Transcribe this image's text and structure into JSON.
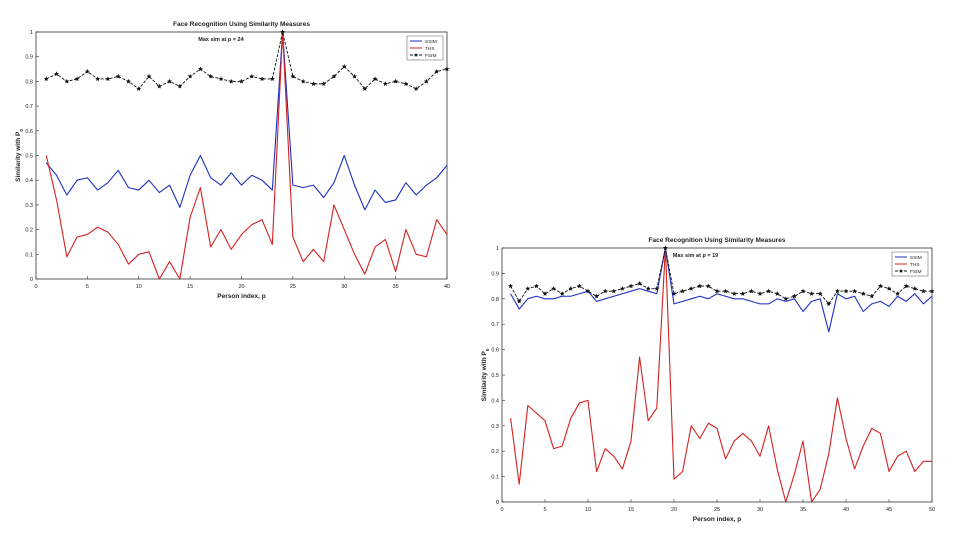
{
  "chart_data": [
    {
      "type": "line",
      "title": "Face Recognition Using Similarity Measures",
      "annotation": "Max sim at p = 24",
      "xlabel": "Person index, p",
      "ylabel": "Similarity with P",
      "ylabel_sub": "0",
      "xlim": [
        0,
        40
      ],
      "ylim": [
        0,
        1
      ],
      "xticks": [
        0,
        5,
        10,
        15,
        20,
        25,
        30,
        35,
        40
      ],
      "xtick_labels": [
        "0",
        "5",
        "10",
        "15",
        "20",
        "25",
        "30",
        "35",
        "40"
      ],
      "yticks": [
        0,
        0.1,
        0.2,
        0.3,
        0.4,
        0.5,
        0.6,
        0.7,
        0.8,
        0.9,
        1
      ],
      "ytick_labels": [
        "0",
        "0.1",
        "0.2",
        "0.3",
        "0.4",
        "0.5",
        "0.6",
        "0.7",
        "0.8",
        "0.9",
        "1"
      ],
      "legend_position": "top-right",
      "grid": false,
      "x": [
        1,
        2,
        3,
        4,
        5,
        6,
        7,
        8,
        9,
        10,
        11,
        12,
        13,
        14,
        15,
        16,
        17,
        18,
        19,
        20,
        21,
        22,
        23,
        24,
        25,
        26,
        27,
        28,
        29,
        30,
        31,
        32,
        33,
        34,
        35,
        36,
        37,
        38,
        39,
        40
      ],
      "series": [
        {
          "name": "SSIM",
          "color": "#1f2fbf",
          "marker": "none",
          "dash": "solid",
          "values": [
            0.47,
            0.42,
            0.34,
            0.4,
            0.41,
            0.36,
            0.39,
            0.44,
            0.37,
            0.36,
            0.4,
            0.35,
            0.38,
            0.29,
            0.42,
            0.5,
            0.41,
            0.38,
            0.43,
            0.38,
            0.42,
            0.4,
            0.36,
            1.0,
            0.38,
            0.37,
            0.38,
            0.33,
            0.39,
            0.5,
            0.38,
            0.28,
            0.36,
            0.31,
            0.32,
            0.39,
            0.34,
            0.38,
            0.41,
            0.46
          ]
        },
        {
          "name": "THS",
          "color": "#d42020",
          "marker": "none",
          "dash": "solid",
          "values": [
            0.5,
            0.32,
            0.09,
            0.17,
            0.18,
            0.21,
            0.19,
            0.14,
            0.06,
            0.1,
            0.11,
            0.0,
            0.07,
            0.0,
            0.25,
            0.37,
            0.13,
            0.2,
            0.12,
            0.18,
            0.22,
            0.24,
            0.14,
            1.0,
            0.17,
            0.07,
            0.12,
            0.07,
            0.3,
            0.2,
            0.1,
            0.02,
            0.13,
            0.16,
            0.03,
            0.2,
            0.1,
            0.09,
            0.24,
            0.18
          ]
        },
        {
          "name": "FSIM",
          "color": "#111111",
          "marker": "star",
          "dash": "dashed",
          "values": [
            0.81,
            0.83,
            0.8,
            0.81,
            0.84,
            0.81,
            0.81,
            0.82,
            0.8,
            0.77,
            0.82,
            0.78,
            0.8,
            0.78,
            0.82,
            0.85,
            0.82,
            0.81,
            0.8,
            0.8,
            0.82,
            0.81,
            0.81,
            1.0,
            0.82,
            0.8,
            0.79,
            0.79,
            0.82,
            0.86,
            0.82,
            0.77,
            0.81,
            0.79,
            0.8,
            0.79,
            0.77,
            0.8,
            0.84,
            0.85
          ]
        }
      ]
    },
    {
      "type": "line",
      "title": "Face Recognition Using Similarity Measures",
      "annotation": "Max sim at p = 19",
      "xlabel": "Person index, p",
      "ylabel": "Similarity with P",
      "ylabel_sub": "0",
      "xlim": [
        0,
        50
      ],
      "ylim": [
        0,
        1
      ],
      "xticks": [
        0,
        5,
        10,
        15,
        20,
        25,
        30,
        35,
        40,
        45,
        50
      ],
      "xtick_labels": [
        "0",
        "5",
        "10",
        "15",
        "20",
        "25",
        "30",
        "35",
        "40",
        "45",
        "50"
      ],
      "yticks": [
        0,
        0.1,
        0.2,
        0.3,
        0.4,
        0.5,
        0.6,
        0.7,
        0.8,
        0.9,
        1
      ],
      "ytick_labels": [
        "0",
        "0.1",
        "0.2",
        "0.3",
        "0.4",
        "0.5",
        "0.6",
        "0.7",
        "0.8",
        "0.9",
        "1"
      ],
      "legend_position": "top-right",
      "grid": false,
      "x": [
        1,
        2,
        3,
        4,
        5,
        6,
        7,
        8,
        9,
        10,
        11,
        12,
        13,
        14,
        15,
        16,
        17,
        18,
        19,
        20,
        21,
        22,
        23,
        24,
        25,
        26,
        27,
        28,
        29,
        30,
        31,
        32,
        33,
        34,
        35,
        36,
        37,
        38,
        39,
        40,
        41,
        42,
        43,
        44,
        45,
        46,
        47,
        48,
        49,
        50
      ],
      "series": [
        {
          "name": "SSIM",
          "color": "#1f2fbf",
          "marker": "none",
          "dash": "solid",
          "values": [
            0.82,
            0.76,
            0.8,
            0.81,
            0.8,
            0.8,
            0.81,
            0.81,
            0.82,
            0.83,
            0.79,
            0.8,
            0.81,
            0.82,
            0.83,
            0.84,
            0.83,
            0.82,
            1.0,
            0.78,
            0.79,
            0.8,
            0.81,
            0.8,
            0.82,
            0.81,
            0.8,
            0.8,
            0.79,
            0.78,
            0.78,
            0.8,
            0.79,
            0.8,
            0.75,
            0.79,
            0.8,
            0.67,
            0.82,
            0.8,
            0.81,
            0.75,
            0.78,
            0.79,
            0.77,
            0.81,
            0.79,
            0.82,
            0.78,
            0.81
          ]
        },
        {
          "name": "THS",
          "color": "#d42020",
          "marker": "none",
          "dash": "solid",
          "values": [
            0.33,
            0.07,
            0.38,
            0.35,
            0.32,
            0.21,
            0.22,
            0.33,
            0.39,
            0.4,
            0.12,
            0.21,
            0.18,
            0.13,
            0.24,
            0.57,
            0.32,
            0.37,
            1.0,
            0.09,
            0.12,
            0.3,
            0.25,
            0.31,
            0.29,
            0.17,
            0.24,
            0.27,
            0.24,
            0.18,
            0.3,
            0.13,
            0.0,
            0.11,
            0.24,
            0.0,
            0.05,
            0.19,
            0.41,
            0.25,
            0.13,
            0.22,
            0.29,
            0.27,
            0.12,
            0.18,
            0.2,
            0.12,
            0.16,
            0.16
          ]
        },
        {
          "name": "FSIM",
          "color": "#111111",
          "marker": "star",
          "dash": "dashed",
          "values": [
            0.85,
            0.79,
            0.84,
            0.85,
            0.82,
            0.84,
            0.82,
            0.84,
            0.85,
            0.83,
            0.81,
            0.83,
            0.83,
            0.84,
            0.85,
            0.86,
            0.84,
            0.84,
            1.0,
            0.82,
            0.83,
            0.84,
            0.85,
            0.85,
            0.83,
            0.83,
            0.82,
            0.82,
            0.83,
            0.82,
            0.83,
            0.82,
            0.8,
            0.81,
            0.83,
            0.82,
            0.82,
            0.78,
            0.83,
            0.83,
            0.83,
            0.82,
            0.81,
            0.85,
            0.84,
            0.82,
            0.85,
            0.84,
            0.83,
            0.83
          ]
        }
      ]
    }
  ]
}
